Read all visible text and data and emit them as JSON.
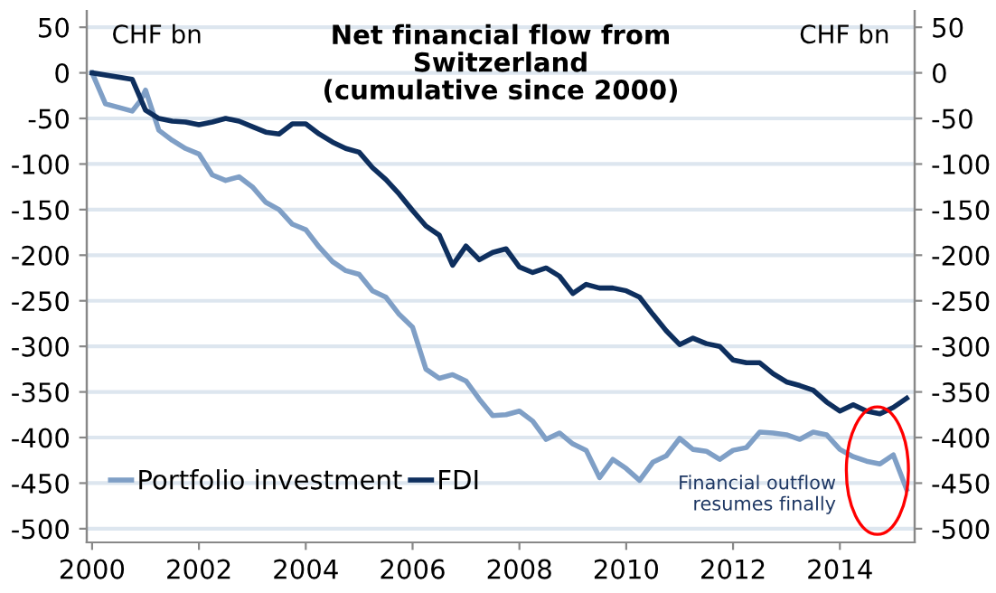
{
  "chart_data": {
    "type": "line",
    "title": "Net financial flow from\nSwitzerland\n(cumulative since 2000)",
    "ylabel": "CHF bn",
    "y2label": "CHF bn",
    "annotations": [
      "Financial outflow\nresumes finally"
    ],
    "series": [
      {
        "name": "Portfolio investment",
        "color": "#7f9fc6",
        "x": [
          2000,
          2000.25,
          2000.5,
          2000.75,
          2000.9,
          2001,
          2001.25,
          2001.5,
          2001.75,
          2002,
          2002.25,
          2002.5,
          2002.75,
          2003,
          2003.25,
          2003.5,
          2003.75,
          2004,
          2004.25,
          2004.5,
          2004.75,
          2005,
          2005.25,
          2005.5,
          2005.75,
          2006,
          2006.25,
          2006.5,
          2006.75,
          2007,
          2007.25,
          2007.5,
          2007.75,
          2008,
          2008.25,
          2008.5,
          2008.75,
          2009,
          2009.25,
          2009.5,
          2009.75,
          2010,
          2010.25,
          2010.5,
          2010.75,
          2011,
          2011.25,
          2011.5,
          2011.75,
          2012,
          2012.25,
          2012.5,
          2012.75,
          2013,
          2013.25,
          2013.5,
          2013.75,
          2014,
          2014.25,
          2014.5,
          2014.75,
          2015,
          2015.25
        ],
        "values": [
          0,
          -34,
          -38,
          -42,
          -31,
          -19,
          -63,
          -74,
          -83,
          -89,
          -112,
          -118,
          -114,
          -125,
          -142,
          -150,
          -166,
          -172,
          -191,
          -207,
          -217,
          -221,
          -239,
          -246,
          -265,
          -279,
          -325,
          -335,
          -331,
          -338,
          -358,
          -376,
          -375,
          -371,
          -382,
          -402,
          -395,
          -407,
          -414,
          -444,
          -424,
          -434,
          -447,
          -427,
          -420,
          -401,
          -413,
          -415,
          -424,
          -414,
          -411,
          -394,
          -395,
          -397,
          -402,
          -394,
          -397,
          -413,
          -421,
          -426,
          -429,
          -419,
          -457
        ]
      },
      {
        "name": "FDI",
        "color": "#0e2f5e",
        "x": [
          2000,
          2000.75,
          2001,
          2001.25,
          2001.5,
          2001.75,
          2002,
          2002.25,
          2002.5,
          2002.75,
          2003,
          2003.25,
          2003.5,
          2003.75,
          2004,
          2004.25,
          2004.5,
          2004.75,
          2005,
          2005.25,
          2005.5,
          2005.75,
          2006,
          2006.25,
          2006.5,
          2006.75,
          2007,
          2007.25,
          2007.5,
          2007.75,
          2008,
          2008.25,
          2008.5,
          2008.75,
          2009,
          2009.25,
          2009.5,
          2009.75,
          2010,
          2010.25,
          2010.5,
          2010.75,
          2011,
          2011.25,
          2011.5,
          2011.75,
          2012,
          2012.25,
          2012.5,
          2012.75,
          2013,
          2013.25,
          2013.5,
          2013.75,
          2014,
          2014.25,
          2014.5,
          2014.75,
          2015,
          2015.25
        ],
        "values": [
          0,
          -7,
          -41,
          -50,
          -53,
          -54,
          -57,
          -54,
          -50,
          -53,
          -59,
          -65,
          -67,
          -56,
          -56,
          -67,
          -76,
          -83,
          -87,
          -104,
          -117,
          -133,
          -151,
          -168,
          -178,
          -211,
          -190,
          -205,
          -197,
          -193,
          -213,
          -219,
          -214,
          -223,
          -242,
          -232,
          -236,
          -236,
          -239,
          -246,
          -265,
          -283,
          -298,
          -291,
          -297,
          -300,
          -315,
          -318,
          -318,
          -330,
          -339,
          -343,
          -348,
          -361,
          -371,
          -364,
          -371,
          -374,
          -367,
          -357
        ]
      }
    ],
    "xlim": [
      1999.9,
      2015.4
    ],
    "xticks": [
      2000,
      2002,
      2004,
      2006,
      2008,
      2010,
      2012,
      2014
    ],
    "ylim": [
      -515,
      68
    ],
    "yticks": [
      50,
      0,
      -50,
      -100,
      -150,
      -200,
      -250,
      -300,
      -350,
      -400,
      -450,
      -500
    ],
    "y2lim": [
      -515,
      68
    ],
    "y2ticks": [
      50,
      0,
      -50,
      -100,
      -150,
      -200,
      -250,
      -300,
      -350,
      -400,
      -450,
      -500
    ],
    "grid": "y",
    "legend": "bottom left",
    "marker": "none",
    "line_style": "solid"
  }
}
